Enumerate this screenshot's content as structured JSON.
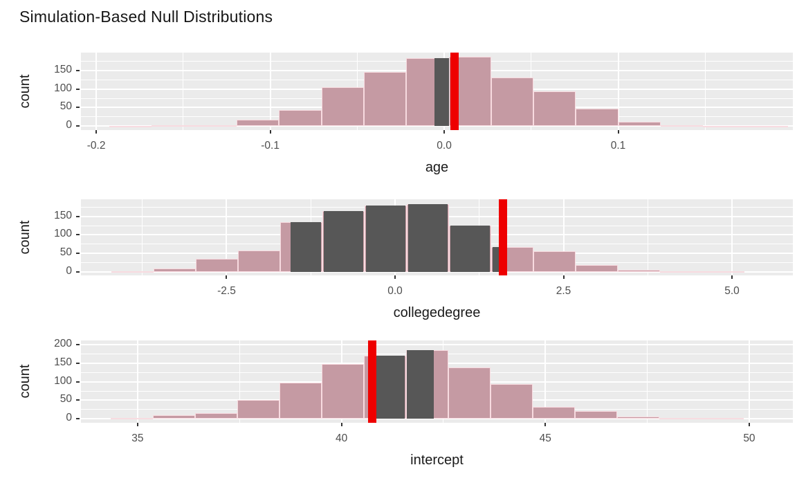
{
  "title": "Simulation-Based Null Distributions",
  "colors": {
    "panel_background": "#ebebeb",
    "gridline": "#ffffff",
    "bar_shaded_fill": "#c59aa3",
    "bar_shaded_border": "#f8dbe0",
    "bar_unshaded_fill": "#575757",
    "observed_line": "#ee0000",
    "tick_label": "#4d4d4d",
    "axis_title": "#1a1a1a",
    "title_text": "#161616"
  },
  "chart_data": {
    "type": "histogram-multi-panel",
    "title": "Simulation-Based Null Distributions",
    "y_axis_label": "count",
    "legend": "none",
    "grid": "on",
    "panels": [
      {
        "xlabel": "age",
        "xlim": [
          -0.2088,
          0.2004
        ],
        "ylim": [
          -9.7,
          197.9
        ],
        "x_ticks": [
          {
            "v": -0.2,
            "label": "-0.2"
          },
          {
            "v": -0.1,
            "label": "-0.1"
          },
          {
            "v": 0.0,
            "label": "0.0"
          },
          {
            "v": 0.1,
            "label": "0.1"
          }
        ],
        "x_minor": [
          -0.15,
          -0.05,
          0.05,
          0.15
        ],
        "y_ticks": [
          {
            "v": 0,
            "label": "0"
          },
          {
            "v": 50,
            "label": "50"
          },
          {
            "v": 100,
            "label": "100"
          },
          {
            "v": 150,
            "label": "150"
          }
        ],
        "y_minor": [
          25,
          75,
          125,
          175
        ],
        "bars": [
          [
            -0.1925,
            -0.1681,
            1
          ],
          [
            -0.1681,
            -0.1437,
            2
          ],
          [
            -0.1437,
            -0.1194,
            3
          ],
          [
            -0.1194,
            -0.095,
            18
          ],
          [
            -0.095,
            -0.0706,
            44
          ],
          [
            -0.0706,
            -0.0462,
            105
          ],
          [
            -0.0462,
            -0.0218,
            146
          ],
          [
            -0.0218,
            0.0026,
            183
          ],
          [
            0.0026,
            0.027,
            186
          ],
          [
            0.027,
            0.0514,
            130
          ],
          [
            0.0514,
            0.0757,
            93
          ],
          [
            0.0757,
            0.1001,
            48
          ],
          [
            0.1001,
            0.1245,
            12
          ],
          [
            0.1245,
            0.1489,
            2
          ],
          [
            0.1489,
            0.1733,
            1
          ],
          [
            0.1733,
            0.1977,
            1
          ]
        ],
        "dark_segments": [
          [
            -0.0055,
            0.0026,
            183
          ]
        ],
        "observed_stat": 0.006
      },
      {
        "xlabel": "collegedegree",
        "xlim": [
          -4.661,
          5.903
        ],
        "ylim": [
          -9.0,
          196.4
        ],
        "x_ticks": [
          {
            "v": -2.5,
            "label": "-2.5"
          },
          {
            "v": 0.0,
            "label": "0.0"
          },
          {
            "v": 2.5,
            "label": "2.5"
          },
          {
            "v": 5.0,
            "label": "5.0"
          }
        ],
        "x_minor": [
          -3.75,
          -1.25,
          1.25,
          3.75
        ],
        "y_ticks": [
          {
            "v": 0,
            "label": "0"
          },
          {
            "v": 50,
            "label": "50"
          },
          {
            "v": 100,
            "label": "100"
          },
          {
            "v": 150,
            "label": "150"
          }
        ],
        "y_minor": [
          25,
          75,
          125,
          175
        ],
        "bars": [
          [
            -4.21,
            -3.583,
            2
          ],
          [
            -3.583,
            -2.957,
            9
          ],
          [
            -2.957,
            -2.331,
            36
          ],
          [
            -2.331,
            -1.704,
            58
          ],
          [
            -1.704,
            -1.078,
            135
          ],
          [
            -1.078,
            -0.452,
            165
          ],
          [
            -0.452,
            0.175,
            179
          ],
          [
            0.175,
            0.801,
            184
          ],
          [
            0.801,
            1.427,
            126
          ],
          [
            1.427,
            2.053,
            67
          ],
          [
            2.053,
            2.68,
            56
          ],
          [
            2.68,
            3.306,
            19
          ],
          [
            3.306,
            3.932,
            6
          ],
          [
            3.932,
            4.559,
            2
          ],
          [
            4.559,
            5.185,
            1
          ]
        ],
        "dark_segments": [
          [
            -1.55,
            -1.1,
            135
          ],
          [
            -1.056,
            -0.474,
            165
          ],
          [
            -0.43,
            0.153,
            179
          ],
          [
            0.197,
            0.779,
            184
          ],
          [
            0.823,
            1.405,
            126
          ],
          [
            1.449,
            1.538,
            67
          ]
        ],
        "observed_stat": 1.6
      },
      {
        "xlabel": "intercept",
        "xlim": [
          33.61,
          51.07
        ],
        "ylim": [
          -10.3,
          212.8
        ],
        "x_ticks": [
          {
            "v": 35,
            "label": "35"
          },
          {
            "v": 40,
            "label": "40"
          },
          {
            "v": 45,
            "label": "45"
          },
          {
            "v": 50,
            "label": "50"
          }
        ],
        "x_minor": [
          37.5,
          42.5,
          47.5
        ],
        "y_ticks": [
          {
            "v": 0,
            "label": "0"
          },
          {
            "v": 50,
            "label": "50"
          },
          {
            "v": 100,
            "label": "100"
          },
          {
            "v": 150,
            "label": "150"
          },
          {
            "v": 200,
            "label": "200"
          }
        ],
        "y_minor": [
          25,
          75,
          125,
          175
        ],
        "bars": [
          [
            34.34,
            35.37,
            1
          ],
          [
            35.37,
            36.41,
            9
          ],
          [
            36.41,
            37.44,
            15
          ],
          [
            37.44,
            38.48,
            50
          ],
          [
            38.48,
            39.51,
            97
          ],
          [
            39.51,
            40.55,
            148
          ],
          [
            40.55,
            41.58,
            170
          ],
          [
            41.58,
            42.62,
            185
          ],
          [
            42.62,
            43.65,
            138
          ],
          [
            43.65,
            44.69,
            93
          ],
          [
            44.69,
            45.72,
            32
          ],
          [
            45.72,
            46.76,
            20
          ],
          [
            46.76,
            47.79,
            5
          ],
          [
            47.79,
            48.83,
            1
          ],
          [
            48.83,
            49.86,
            1
          ]
        ],
        "dark_segments": [
          [
            40.86,
            41.55,
            170
          ],
          [
            41.61,
            42.26,
            185
          ]
        ],
        "observed_stat": 40.76
      }
    ]
  }
}
